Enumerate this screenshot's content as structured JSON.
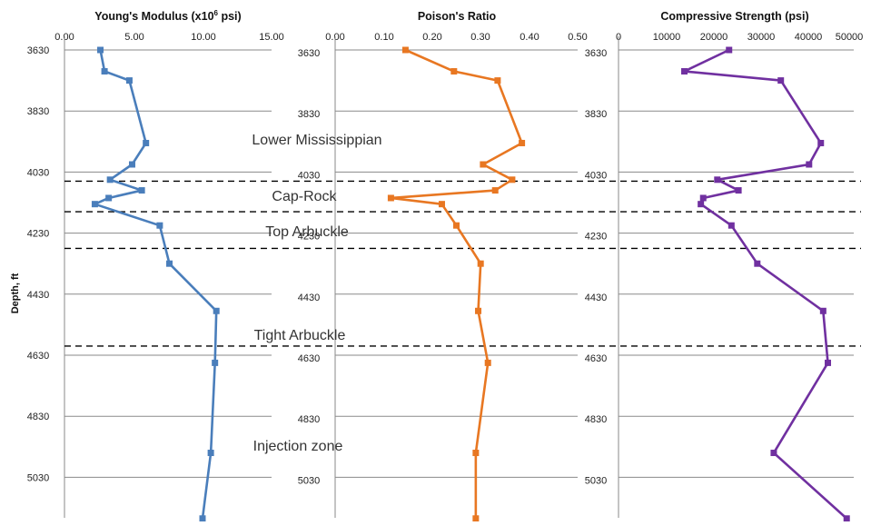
{
  "chart_data": [
    {
      "type": "line",
      "title": "Young's Modulus (x10",
      "title_sup": "6",
      "title_end": " psi)",
      "ylabel": "Depth, ft",
      "xlim": [
        0,
        15
      ],
      "xticks": [
        "0.00",
        "5.00",
        "10.00",
        "15.00"
      ],
      "ylim": [
        3630,
        5180
      ],
      "yticks": [
        "3630",
        "3830",
        "4030",
        "4230",
        "4430",
        "4630",
        "4830",
        "5030"
      ],
      "color": "#4A7EBB",
      "series": [
        {
          "x": [
            2.6,
            2.9,
            4.7,
            5.9,
            4.9,
            3.3,
            5.6,
            3.2,
            2.2,
            6.9,
            7.6,
            11.0,
            10.9,
            10.6,
            10.0
          ],
          "y": [
            3630,
            3700,
            3730,
            3935,
            4005,
            4055,
            4090,
            4115,
            4135,
            4205,
            4330,
            4485,
            4655,
            4950,
            5165
          ]
        }
      ]
    },
    {
      "type": "line",
      "title": "Poison's Ratio",
      "xlim": [
        0,
        0.5
      ],
      "xticks": [
        "0.00",
        "0.10",
        "0.20",
        "0.30",
        "0.40",
        "0.50"
      ],
      "ylim": [
        3630,
        5180
      ],
      "yticks": [
        "3630",
        "3830",
        "4030",
        "4230",
        "4430",
        "4630",
        "4830",
        "5030"
      ],
      "color": "#E87722",
      "series": [
        {
          "x": [
            0.145,
            0.245,
            0.335,
            0.385,
            0.305,
            0.365,
            0.33,
            0.115,
            0.22,
            0.25,
            0.3,
            0.295,
            0.315,
            0.29,
            0.29
          ],
          "y": [
            3630,
            3700,
            3730,
            3935,
            4005,
            4055,
            4090,
            4115,
            4135,
            4205,
            4330,
            4485,
            4655,
            4950,
            5165
          ]
        }
      ]
    },
    {
      "type": "line",
      "title": "Compressive Strength (psi)",
      "xlim": [
        0,
        50000
      ],
      "xticks": [
        "0",
        "10000",
        "20000",
        "30000",
        "40000",
        "50000"
      ],
      "ylim": [
        3630,
        5180
      ],
      "yticks": [
        "3630",
        "3830",
        "4030",
        "4230",
        "4430",
        "4630",
        "4830",
        "5030"
      ],
      "color": "#7030A0",
      "series": [
        {
          "x": [
            23500,
            14000,
            34500,
            43000,
            40500,
            21000,
            25500,
            18000,
            17500,
            24000,
            29500,
            43500,
            44500,
            33000,
            48500
          ],
          "y": [
            3630,
            3700,
            3730,
            3935,
            4005,
            4055,
            4090,
            4115,
            4135,
            4205,
            4330,
            4485,
            4655,
            4950,
            5165
          ]
        }
      ]
    }
  ],
  "zones": [
    "Lower Mississippian",
    "Cap-Rock",
    "Top Arbuckle",
    "Tight Arbuckle",
    "Injection zone"
  ],
  "boundaries": [
    4060,
    4160,
    4280,
    4600
  ]
}
